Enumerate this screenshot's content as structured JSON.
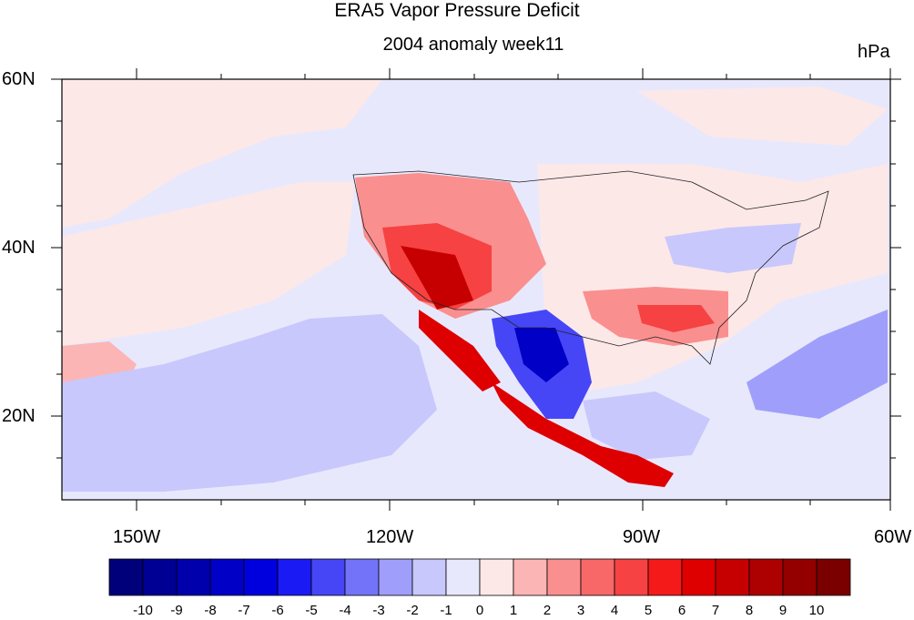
{
  "title": "ERA5 Vapor Pressure Deficit",
  "subtitle": "2004 anomaly week11",
  "units": "hPa",
  "axes": {
    "y_ticks": [
      "60N",
      "40N",
      "20N"
    ],
    "x_ticks": [
      "150W",
      "120W",
      "90W",
      "60W"
    ]
  },
  "colorbar": {
    "labels": [
      "-10",
      "-9",
      "-8",
      "-7",
      "-6",
      "-5",
      "-4",
      "-3",
      "-2",
      "-1",
      "0",
      "1",
      "2",
      "3",
      "4",
      "5",
      "6",
      "7",
      "8",
      "9",
      "10"
    ],
    "colors": [
      "#00007a",
      "#000094",
      "#0000ad",
      "#0000c6",
      "#0000de",
      "#1a1af5",
      "#4646f7",
      "#7373f9",
      "#9f9ffb",
      "#c8c8fc",
      "#e8e8fd",
      "#fde8e8",
      "#fcb5b5",
      "#fa8f8f",
      "#f86868",
      "#f64242",
      "#f51a1a",
      "#de0000",
      "#c60000",
      "#ad0000",
      "#940000",
      "#7a0000"
    ]
  },
  "palette": {
    "background_neutral_blue": "#e8e8fd",
    "background_neutral_red": "#fde8e8"
  }
}
